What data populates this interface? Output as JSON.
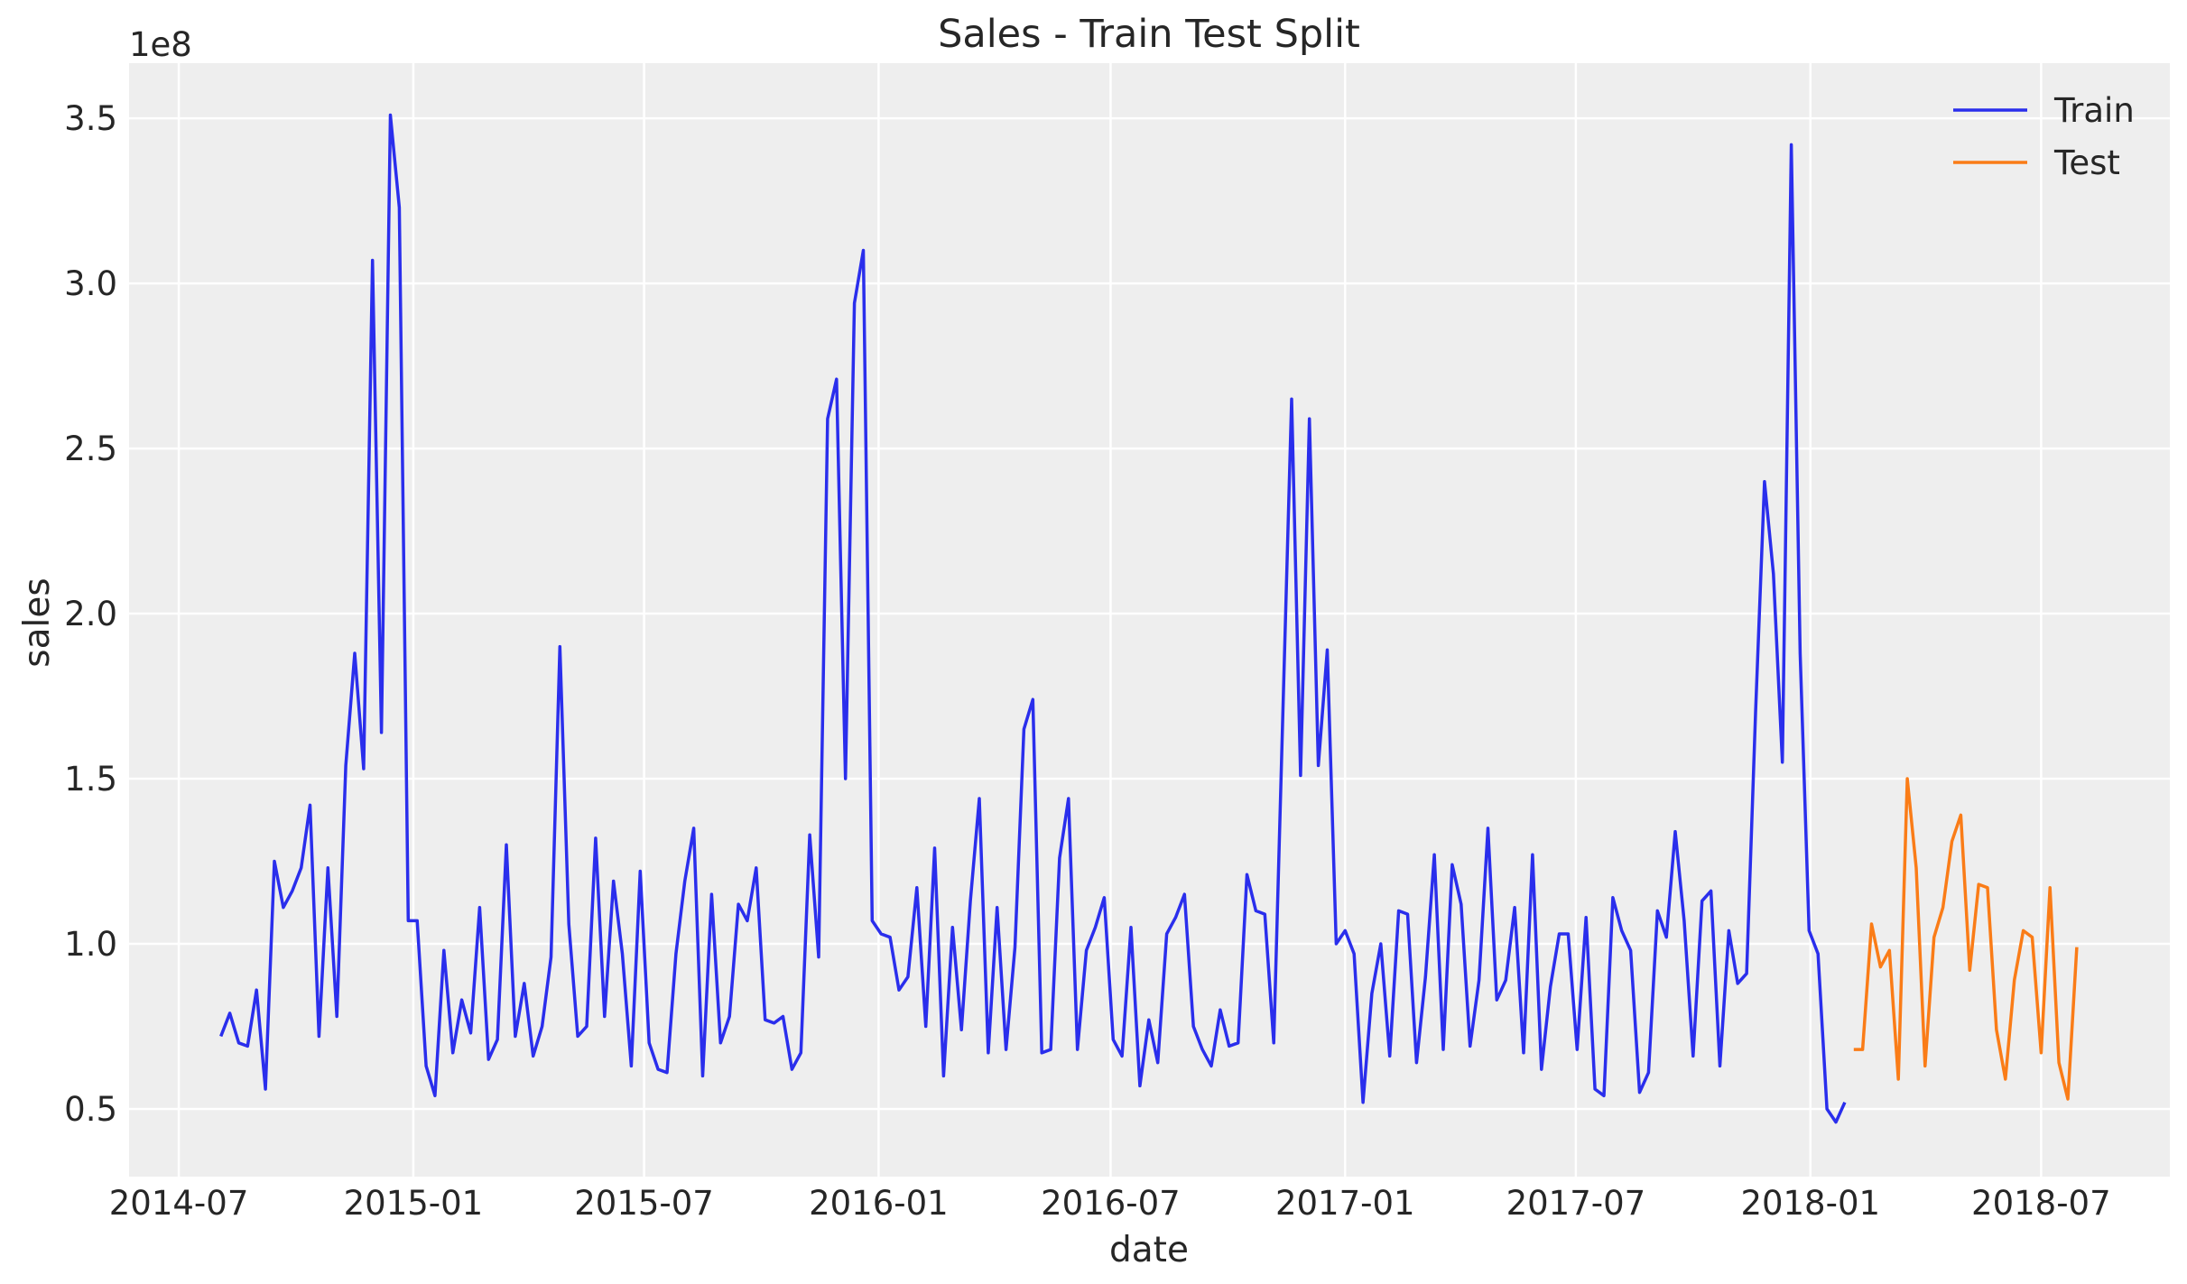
{
  "chart_data": {
    "type": "line",
    "title": "Sales - Train Test Split",
    "xlabel": "date",
    "ylabel": "sales",
    "y_offset_text": "1e8",
    "xlim": [
      "2014-05-23",
      "2018-10-10"
    ],
    "ylim": [
      0.295,
      3.667
    ],
    "grid": true,
    "legend_position": "top-right",
    "background_color": "#eeeeee",
    "x_ticks": [
      "2014-07",
      "2015-01",
      "2015-07",
      "2016-01",
      "2016-07",
      "2017-01",
      "2017-07",
      "2018-01",
      "2018-07"
    ],
    "y_ticks": [
      "0.5",
      "1.0",
      "1.5",
      "2.0",
      "2.5",
      "3.0",
      "3.5"
    ],
    "series": [
      {
        "name": "Train",
        "color": "#2a2eec",
        "x": [
          "2014-08-03",
          "2014-08-10",
          "2014-08-17",
          "2014-08-24",
          "2014-08-31",
          "2014-09-07",
          "2014-09-14",
          "2014-09-21",
          "2014-09-28",
          "2014-10-05",
          "2014-10-12",
          "2014-10-19",
          "2014-10-26",
          "2014-11-02",
          "2014-11-09",
          "2014-11-16",
          "2014-11-23",
          "2014-11-30",
          "2014-12-07",
          "2014-12-14",
          "2014-12-21",
          "2014-12-28",
          "2015-01-04",
          "2015-01-11",
          "2015-01-18",
          "2015-01-25",
          "2015-02-01",
          "2015-02-08",
          "2015-02-15",
          "2015-02-22",
          "2015-03-01",
          "2015-03-08",
          "2015-03-15",
          "2015-03-22",
          "2015-03-29",
          "2015-04-05",
          "2015-04-12",
          "2015-04-19",
          "2015-04-26",
          "2015-05-03",
          "2015-05-10",
          "2015-05-17",
          "2015-05-24",
          "2015-05-31",
          "2015-06-07",
          "2015-06-14",
          "2015-06-21",
          "2015-06-28",
          "2015-07-05",
          "2015-07-12",
          "2015-07-19",
          "2015-07-26",
          "2015-08-02",
          "2015-08-09",
          "2015-08-16",
          "2015-08-23",
          "2015-08-30",
          "2015-09-06",
          "2015-09-13",
          "2015-09-20",
          "2015-09-27",
          "2015-10-04",
          "2015-10-11",
          "2015-10-18",
          "2015-10-25",
          "2015-11-01",
          "2015-11-08",
          "2015-11-15",
          "2015-11-22",
          "2015-11-29",
          "2015-12-06",
          "2015-12-13",
          "2015-12-20",
          "2015-12-27",
          "2016-01-03",
          "2016-01-10",
          "2016-01-17",
          "2016-01-24",
          "2016-01-31",
          "2016-02-07",
          "2016-02-14",
          "2016-02-21",
          "2016-02-28",
          "2016-03-06",
          "2016-03-13",
          "2016-03-20",
          "2016-03-27",
          "2016-04-03",
          "2016-04-10",
          "2016-04-17",
          "2016-04-24",
          "2016-05-01",
          "2016-05-08",
          "2016-05-15",
          "2016-05-22",
          "2016-05-29",
          "2016-06-05",
          "2016-06-12",
          "2016-06-19",
          "2016-06-26",
          "2016-07-03",
          "2016-07-10",
          "2016-07-17",
          "2016-07-24",
          "2016-07-31",
          "2016-08-07",
          "2016-08-14",
          "2016-08-21",
          "2016-08-28",
          "2016-09-04",
          "2016-09-11",
          "2016-09-18",
          "2016-09-25",
          "2016-10-02",
          "2016-10-09",
          "2016-10-16",
          "2016-10-23",
          "2016-10-30",
          "2016-11-06",
          "2016-11-13",
          "2016-11-20",
          "2016-11-27",
          "2016-12-04",
          "2016-12-11",
          "2016-12-18",
          "2016-12-25",
          "2017-01-01",
          "2017-01-08",
          "2017-01-15",
          "2017-01-22",
          "2017-01-29",
          "2017-02-05",
          "2017-02-12",
          "2017-02-19",
          "2017-02-26",
          "2017-03-05",
          "2017-03-12",
          "2017-03-19",
          "2017-03-26",
          "2017-04-02",
          "2017-04-09",
          "2017-04-16",
          "2017-04-23",
          "2017-04-30",
          "2017-05-07",
          "2017-05-14",
          "2017-05-21",
          "2017-05-28",
          "2017-06-04",
          "2017-06-11",
          "2017-06-18",
          "2017-06-25",
          "2017-07-02",
          "2017-07-09",
          "2017-07-16",
          "2017-07-23",
          "2017-07-30",
          "2017-08-06",
          "2017-08-13",
          "2017-08-20",
          "2017-08-27",
          "2017-09-03",
          "2017-09-10",
          "2017-09-17",
          "2017-09-24",
          "2017-10-01",
          "2017-10-08",
          "2017-10-15",
          "2017-10-22",
          "2017-10-29",
          "2017-11-05",
          "2017-11-12",
          "2017-11-19",
          "2017-11-26",
          "2017-12-03",
          "2017-12-10",
          "2017-12-17",
          "2017-12-24",
          "2017-12-31",
          "2018-01-07",
          "2018-01-14",
          "2018-01-21",
          "2018-01-28"
        ],
        "values": [
          0.72,
          0.79,
          0.7,
          0.69,
          0.86,
          0.56,
          1.25,
          1.11,
          1.16,
          1.23,
          1.42,
          0.72,
          1.23,
          0.78,
          1.54,
          1.88,
          1.53,
          3.07,
          1.64,
          3.51,
          3.23,
          1.07,
          1.07,
          0.63,
          0.54,
          0.98,
          0.67,
          0.83,
          0.73,
          1.11,
          0.65,
          0.71,
          1.3,
          0.72,
          0.88,
          0.66,
          0.75,
          0.96,
          1.9,
          1.06,
          0.72,
          0.75,
          1.32,
          0.78,
          1.19,
          0.97,
          0.63,
          1.22,
          0.7,
          0.62,
          0.61,
          0.97,
          1.19,
          1.35,
          0.6,
          1.15,
          0.7,
          0.78,
          1.12,
          1.07,
          1.23,
          0.77,
          0.76,
          0.78,
          0.62,
          0.67,
          1.33,
          0.96,
          2.59,
          2.71,
          1.5,
          2.94,
          3.1,
          1.07,
          1.03,
          1.02,
          0.86,
          0.9,
          1.17,
          0.75,
          1.29,
          0.6,
          1.05,
          0.74,
          1.13,
          1.44,
          0.67,
          1.11,
          0.68,
          0.99,
          1.65,
          1.74,
          0.67,
          0.68,
          1.26,
          1.44,
          0.68,
          0.98,
          1.05,
          1.14,
          0.71,
          0.66,
          1.05,
          0.57,
          0.77,
          0.64,
          1.03,
          1.08,
          1.15,
          0.75,
          0.68,
          0.63,
          0.8,
          0.69,
          0.7,
          1.21,
          1.1,
          1.09,
          0.7,
          1.68,
          2.65,
          1.51,
          2.59,
          1.54,
          1.89,
          1.0,
          1.04,
          0.97,
          0.52,
          0.85,
          1.0,
          0.66,
          1.1,
          1.09,
          0.64,
          0.9,
          1.27,
          0.68,
          1.24,
          1.12,
          0.69,
          0.89,
          1.35,
          0.83,
          0.89,
          1.11,
          0.67,
          1.27,
          0.62,
          0.87,
          1.03,
          1.03,
          0.68,
          1.08,
          0.56,
          0.54,
          1.14,
          1.04,
          0.98,
          0.55,
          0.61,
          1.1,
          1.02,
          1.34,
          1.07,
          0.66,
          1.13,
          1.16,
          0.63,
          1.04,
          0.88,
          0.91,
          1.7,
          2.4,
          2.12,
          1.55,
          3.42,
          1.88,
          1.04,
          0.97,
          0.5,
          0.46,
          0.52
        ]
      },
      {
        "name": "Test",
        "color": "#fa7c17",
        "x": [
          "2018-02-04",
          "2018-02-11",
          "2018-02-18",
          "2018-02-25",
          "2018-03-04",
          "2018-03-11",
          "2018-03-18",
          "2018-03-25",
          "2018-04-01",
          "2018-04-08",
          "2018-04-15",
          "2018-04-22",
          "2018-04-29",
          "2018-05-06",
          "2018-05-13",
          "2018-05-20",
          "2018-05-27",
          "2018-06-03",
          "2018-06-10",
          "2018-06-17",
          "2018-06-24",
          "2018-07-01",
          "2018-07-08",
          "2018-07-15",
          "2018-07-22",
          "2018-07-29"
        ],
        "values": [
          0.68,
          0.68,
          1.06,
          0.93,
          0.98,
          0.59,
          1.5,
          1.23,
          0.63,
          1.02,
          1.11,
          1.31,
          1.39,
          0.92,
          1.18,
          1.17,
          0.74,
          0.59,
          0.89,
          1.04,
          1.02,
          0.67,
          1.17,
          0.64,
          0.53,
          0.99
        ]
      }
    ]
  }
}
